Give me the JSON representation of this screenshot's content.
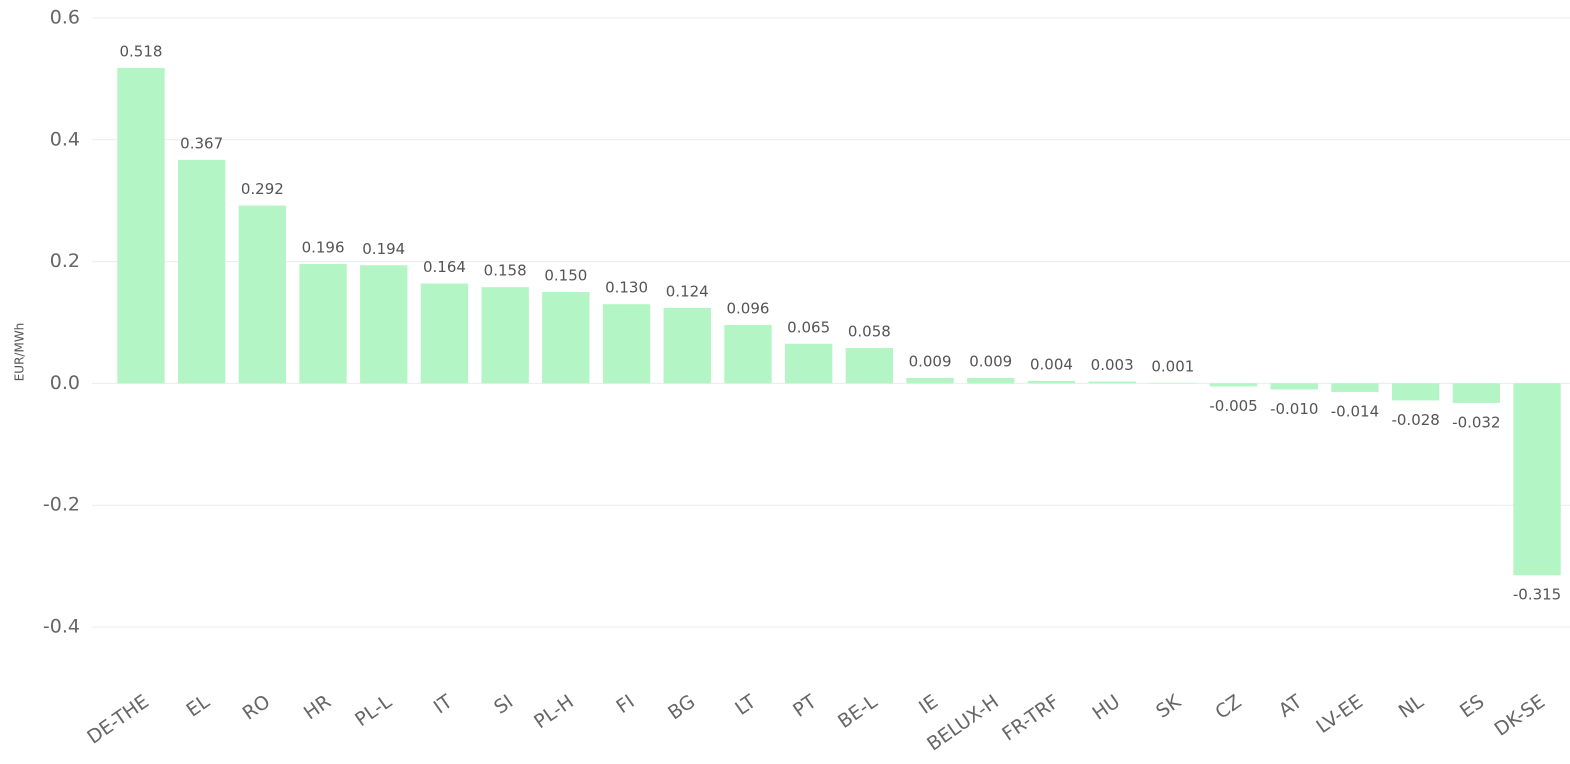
{
  "chart_data": {
    "type": "bar",
    "y_axis_label": "EUR/MWh",
    "categories": [
      "DE-THE",
      "EL",
      "RO",
      "HR",
      "PL-L",
      "IT",
      "SI",
      "PL-H",
      "FI",
      "BG",
      "LT",
      "PT",
      "BE-L",
      "IE",
      "BELUX-H",
      "FR-TRF",
      "HU",
      "SK",
      "CZ",
      "AT",
      "LV-EE",
      "NL",
      "ES",
      "DK-SE"
    ],
    "values": [
      0.518,
      0.367,
      0.292,
      0.196,
      0.194,
      0.164,
      0.158,
      0.15,
      0.13,
      0.124,
      0.096,
      0.065,
      0.058,
      0.009,
      0.009,
      0.004,
      0.003,
      0.001,
      -0.005,
      -0.01,
      -0.014,
      -0.028,
      -0.032,
      -0.315
    ],
    "value_labels": [
      "0.518",
      "0.367",
      "0.292",
      "0.196",
      "0.194",
      "0.164",
      "0.158",
      "0.150",
      "0.130",
      "0.124",
      "0.096",
      "0.065",
      "0.058",
      "0.009",
      "0.009",
      "0.004",
      "0.003",
      "0.001",
      "-0.005",
      "-0.010",
      "-0.014",
      "-0.028",
      "-0.032",
      "-0.315"
    ],
    "color": "#b3f5c4",
    "ylim": [
      -0.4,
      0.6
    ],
    "yticks": [
      -0.4,
      -0.2,
      {
        "value": 0,
        "label": "0.0"
      },
      0.2,
      0.4,
      0.6
    ],
    "grid": true
  }
}
